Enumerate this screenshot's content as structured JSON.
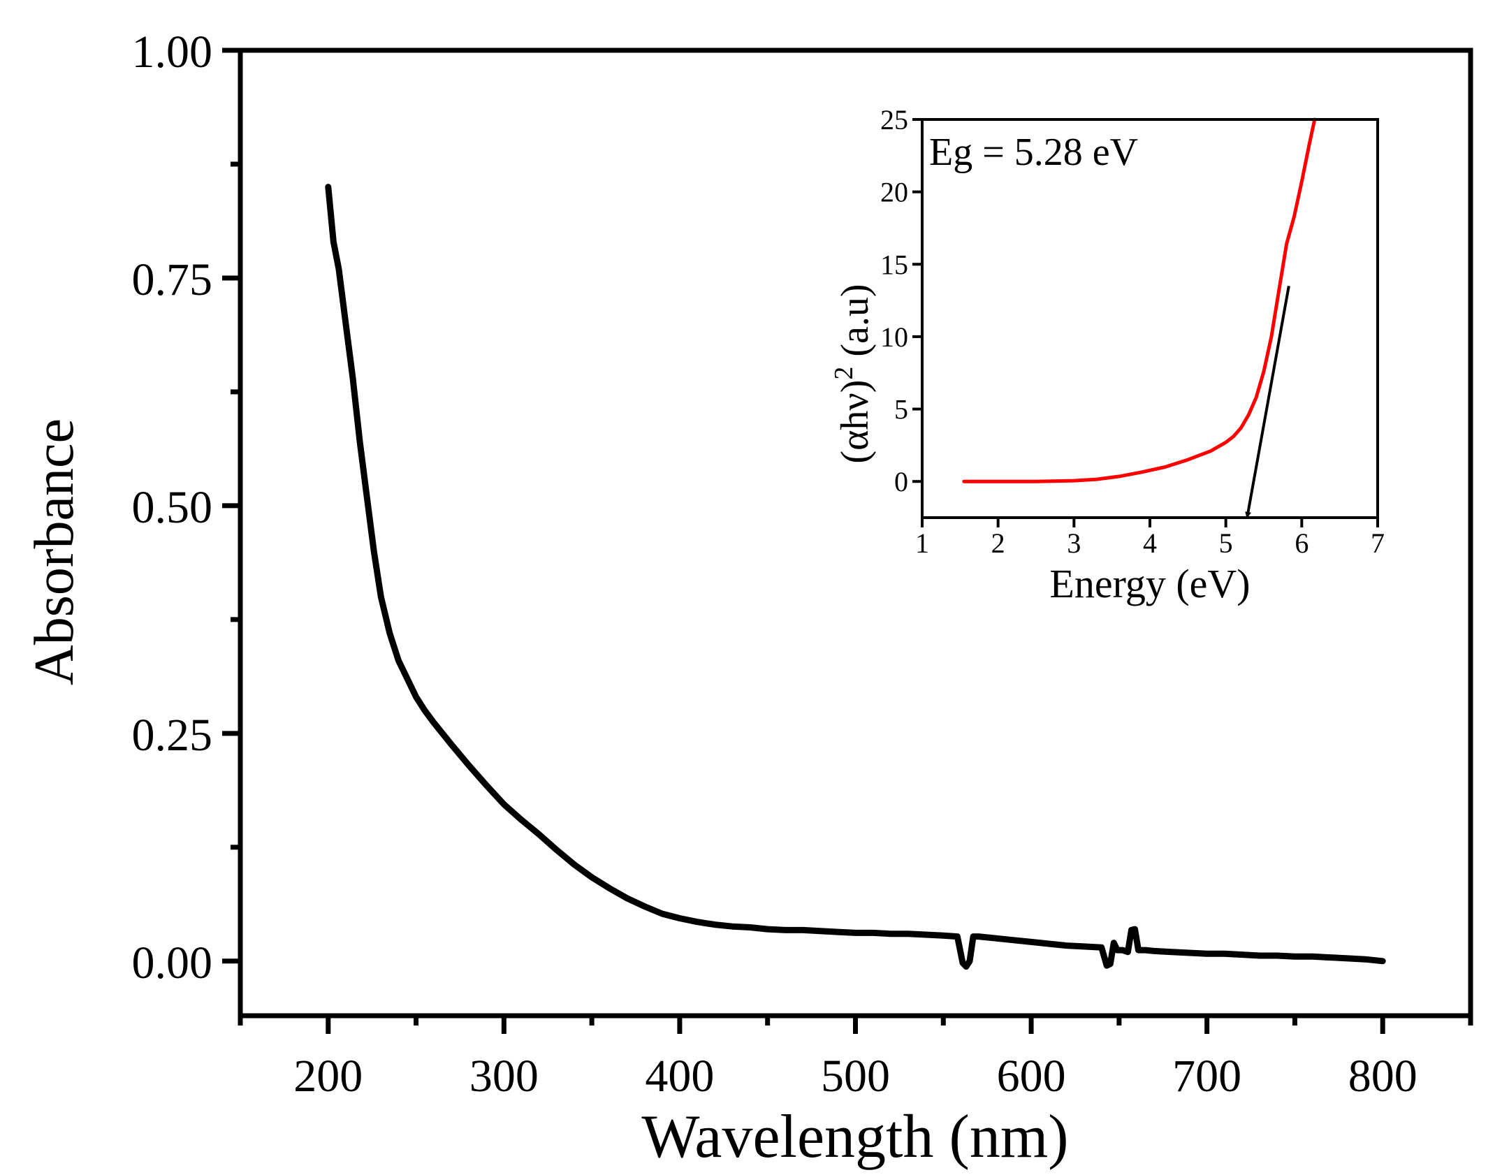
{
  "colors": {
    "main_line": "#000000",
    "inset_line": "#ff0000",
    "arrow": "#000000",
    "axis": "#000000"
  },
  "chart_data": [
    {
      "type": "line",
      "title": "",
      "xlabel": "Wavelength (nm)",
      "ylabel": "Absorbance",
      "xlim": [
        150,
        850
      ],
      "ylim": [
        -0.06,
        1.0
      ],
      "xticks": [
        200,
        300,
        400,
        500,
        600,
        700,
        800
      ],
      "xtick_labels": [
        "200",
        "300",
        "400",
        "500",
        "600",
        "700",
        "800"
      ],
      "yticks": [
        0.0,
        0.25,
        0.5,
        0.75,
        1.0
      ],
      "ytick_labels": [
        "0.00",
        "0.25",
        "0.50",
        "0.75",
        "1.00"
      ],
      "grid": false,
      "series": [
        {
          "name": "Absorbance",
          "x": [
            200,
            203,
            206,
            210,
            214,
            218,
            222,
            226,
            230,
            235,
            240,
            245,
            250,
            255,
            260,
            270,
            280,
            290,
            300,
            310,
            320,
            330,
            340,
            350,
            360,
            370,
            380,
            390,
            400,
            410,
            420,
            430,
            440,
            450,
            460,
            470,
            480,
            490,
            500,
            510,
            520,
            530,
            540,
            550,
            558,
            561,
            563,
            565,
            567,
            570,
            580,
            590,
            600,
            610,
            620,
            630,
            640,
            643,
            645,
            647,
            649,
            652,
            655,
            657,
            659,
            661,
            665,
            670,
            680,
            690,
            700,
            710,
            720,
            730,
            740,
            750,
            760,
            770,
            780,
            790,
            800
          ],
          "y": [
            0.85,
            0.79,
            0.76,
            0.7,
            0.64,
            0.57,
            0.51,
            0.45,
            0.4,
            0.36,
            0.33,
            0.31,
            0.29,
            0.275,
            0.262,
            0.238,
            0.215,
            0.193,
            0.172,
            0.155,
            0.139,
            0.122,
            0.106,
            0.092,
            0.08,
            0.069,
            0.06,
            0.052,
            0.047,
            0.043,
            0.04,
            0.038,
            0.037,
            0.035,
            0.034,
            0.034,
            0.033,
            0.032,
            0.031,
            0.031,
            0.03,
            0.03,
            0.029,
            0.028,
            0.027,
            -0.002,
            -0.006,
            0.0,
            0.027,
            0.027,
            0.025,
            0.023,
            0.021,
            0.019,
            0.017,
            0.016,
            0.015,
            -0.005,
            -0.003,
            0.02,
            0.012,
            0.012,
            0.01,
            0.034,
            0.035,
            0.012,
            0.012,
            0.011,
            0.01,
            0.009,
            0.008,
            0.008,
            0.007,
            0.006,
            0.006,
            0.005,
            0.005,
            0.004,
            0.003,
            0.002,
            0.0
          ]
        }
      ]
    },
    {
      "type": "line",
      "title": "",
      "xlabel": "Energy (eV)",
      "ylabel_main": "(αhν)",
      "ylabel_sup": "2",
      "ylabel_tail": " (a.u)",
      "xlim": [
        1,
        7
      ],
      "ylim": [
        -2.5,
        25
      ],
      "xticks": [
        1,
        2,
        3,
        4,
        5,
        6,
        7
      ],
      "xtick_labels": [
        "1",
        "2",
        "3",
        "4",
        "5",
        "6",
        "7"
      ],
      "yticks": [
        0,
        5,
        10,
        15,
        20,
        25
      ],
      "ytick_labels": [
        "0",
        "5",
        "10",
        "15",
        "20",
        "25"
      ],
      "grid": false,
      "annotation": "Eg = 5.28 eV",
      "series": [
        {
          "name": "(αhν)^2",
          "x": [
            1.55,
            2.0,
            2.5,
            3.0,
            3.3,
            3.6,
            3.9,
            4.2,
            4.5,
            4.8,
            5.0,
            5.1,
            5.2,
            5.3,
            5.4,
            5.5,
            5.6,
            5.7,
            5.8,
            5.9,
            6.0,
            6.1,
            6.17
          ],
          "y": [
            0.0,
            0.0,
            0.0,
            0.05,
            0.15,
            0.35,
            0.65,
            1.0,
            1.5,
            2.1,
            2.7,
            3.1,
            3.7,
            4.6,
            5.8,
            7.6,
            10.0,
            13.2,
            16.4,
            18.3,
            20.7,
            23.3,
            25.0
          ]
        }
      ],
      "fit_line": {
        "x": [
          5.83,
          5.28
        ],
        "y": [
          13.5,
          -2.5
        ]
      }
    }
  ]
}
